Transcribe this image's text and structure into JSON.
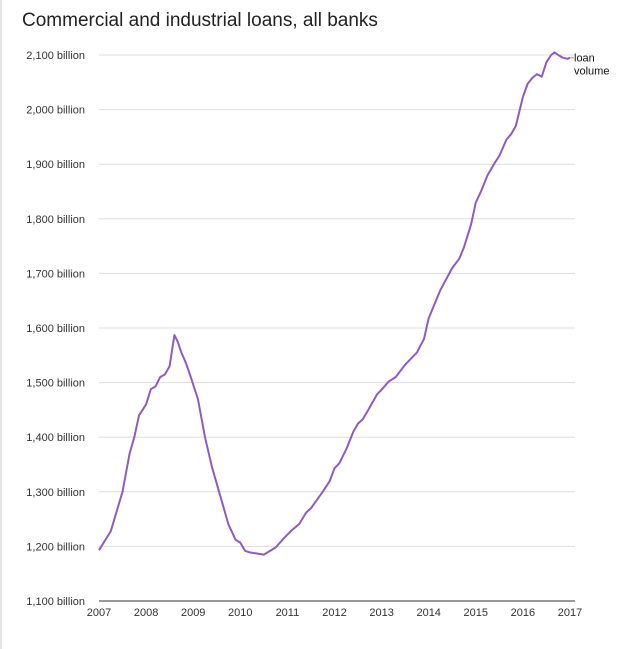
{
  "chart_data": {
    "type": "line",
    "title": "Commercial and industrial loans, all banks",
    "xlabel": "",
    "ylabel": "",
    "xlim": [
      2007,
      2017
    ],
    "ylim": [
      1100,
      2100
    ],
    "y_ticks": [
      1100,
      1200,
      1300,
      1400,
      1500,
      1600,
      1700,
      1800,
      1900,
      2000,
      2100
    ],
    "y_tick_labels": [
      "1,100 billion",
      "1,200 billion",
      "1,300 billion",
      "1,400 billion",
      "1,500 billion",
      "1,600 billion",
      "1,700 billion",
      "1,800 billion",
      "1,900 billion",
      "2,000 billion",
      "2,100 billion"
    ],
    "x_ticks": [
      2007,
      2008,
      2009,
      2010,
      2011,
      2012,
      2013,
      2014,
      2015,
      2016,
      2017
    ],
    "x_tick_labels": [
      "2007",
      "2008",
      "2009",
      "2010",
      "2011",
      "2012",
      "2013",
      "2014",
      "2015",
      "2016",
      "2017"
    ],
    "grid": "horizontal",
    "legend": "end-of-line label",
    "series": [
      {
        "name": "loan volume",
        "color": "#8e5bc2",
        "x": [
          2007.0,
          2007.25,
          2007.5,
          2007.65,
          2007.75,
          2007.85,
          2008.0,
          2008.1,
          2008.2,
          2008.3,
          2008.4,
          2008.5,
          2008.6,
          2008.67,
          2008.75,
          2008.8,
          2008.85,
          2008.95,
          2009.1,
          2009.25,
          2009.4,
          2009.55,
          2009.75,
          2009.9,
          2010.0,
          2010.1,
          2010.2,
          2010.35,
          2010.5,
          2010.75,
          2010.95,
          2011.1,
          2011.25,
          2011.4,
          2011.5,
          2011.6,
          2011.75,
          2011.9,
          2012.0,
          2012.1,
          2012.25,
          2012.4,
          2012.5,
          2012.6,
          2012.75,
          2012.9,
          2013.0,
          2013.15,
          2013.3,
          2013.5,
          2013.75,
          2013.9,
          2014.0,
          2014.25,
          2014.5,
          2014.65,
          2014.75,
          2014.9,
          2015.0,
          2015.1,
          2015.25,
          2015.4,
          2015.5,
          2015.65,
          2015.75,
          2015.85,
          2016.0,
          2016.1,
          2016.2,
          2016.3,
          2016.4,
          2016.5,
          2016.6,
          2016.67,
          2016.75,
          2016.85,
          2016.95,
          2017.0
        ],
        "values": [
          1193,
          1228,
          1300,
          1370,
          1400,
          1440,
          1460,
          1488,
          1493,
          1510,
          1515,
          1530,
          1587,
          1575,
          1555,
          1545,
          1535,
          1510,
          1470,
          1400,
          1345,
          1300,
          1240,
          1212,
          1207,
          1192,
          1189,
          1187,
          1185,
          1198,
          1217,
          1230,
          1241,
          1262,
          1270,
          1282,
          1300,
          1320,
          1343,
          1352,
          1378,
          1410,
          1425,
          1433,
          1455,
          1478,
          1487,
          1502,
          1510,
          1533,
          1555,
          1580,
          1618,
          1670,
          1710,
          1727,
          1748,
          1790,
          1830,
          1848,
          1880,
          1902,
          1915,
          1945,
          1955,
          1970,
          2023,
          2047,
          2058,
          2065,
          2060,
          2087,
          2100,
          2105,
          2100,
          2095,
          2093,
          2095
        ]
      }
    ]
  }
}
